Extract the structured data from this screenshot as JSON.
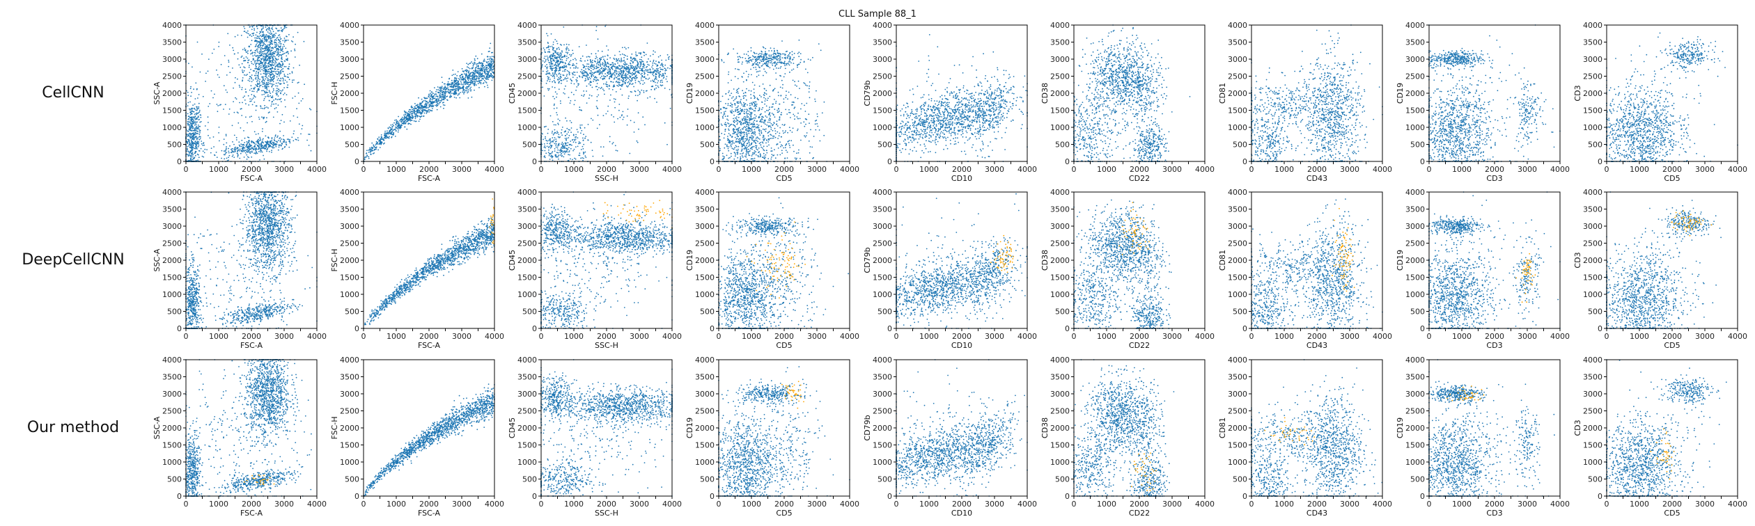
{
  "figure": {
    "title": "CLL Sample 88_1",
    "row_labels": [
      "CellCNN",
      "DeepCellCNN",
      "Our method"
    ],
    "colors": {
      "cells": "#1f77b4",
      "highlighted": "#ffa500"
    }
  },
  "chart_data": {
    "type": "scatter",
    "title": "CLL Sample 88_1",
    "xlim": [
      0,
      4000
    ],
    "ylim": [
      0,
      4000
    ],
    "ticks": [
      0,
      500,
      1000,
      1500,
      2000,
      2500,
      3000,
      3500,
      4000
    ],
    "x_tick_labels": [
      "0",
      "1000",
      "2000",
      "3000",
      "4000"
    ],
    "y_tick_labels": [
      "0",
      "500",
      "1000",
      "1500",
      "2000",
      "2500",
      "3000",
      "3500",
      "4000"
    ],
    "grid": false,
    "rows": [
      "CellCNN",
      "DeepCellCNN",
      "Our method"
    ],
    "panels": [
      {
        "xlabel": "FSC-A",
        "ylabel": "SSC-A",
        "populations": [
          {
            "cx": 2500,
            "cy": 3000,
            "sx": 350,
            "sy": 650,
            "n": 1100
          },
          {
            "cx": 200,
            "cy": 700,
            "sx": 120,
            "sy": 550,
            "n": 450
          },
          {
            "cx": 2200,
            "cy": 450,
            "sx": 550,
            "sy": 120,
            "n": 380,
            "tilt": 0.18
          },
          {
            "cx": 1500,
            "cy": 1500,
            "sx": 1100,
            "sy": 1100,
            "n": 250
          }
        ],
        "highlight": [
          null,
          null,
          {
            "cx": 2300,
            "cy": 500,
            "sx": 200,
            "sy": 80,
            "n": 25
          }
        ]
      },
      {
        "xlabel": "FSC-A",
        "ylabel": "FSC-H",
        "populations": [
          {
            "kind": "curve",
            "n": 1400
          }
        ],
        "highlight": [
          null,
          {
            "cx": 3950,
            "cy": 3000,
            "sx": 40,
            "sy": 400,
            "n": 25
          },
          null
        ]
      },
      {
        "xlabel": "SSC-H",
        "ylabel": "CD45",
        "populations": [
          {
            "cx": 2500,
            "cy": 2650,
            "sx": 900,
            "sy": 250,
            "n": 900
          },
          {
            "cx": 450,
            "cy": 2900,
            "sx": 250,
            "sy": 300,
            "n": 300
          },
          {
            "cx": 600,
            "cy": 450,
            "sx": 450,
            "sy": 300,
            "n": 300
          },
          {
            "cx": 1600,
            "cy": 1800,
            "sx": 1200,
            "sy": 900,
            "n": 250
          }
        ],
        "highlight": [
          null,
          {
            "cx": 3000,
            "cy": 3400,
            "sx": 600,
            "sy": 150,
            "n": 60
          },
          null
        ]
      },
      {
        "xlabel": "CD5",
        "ylabel": "CD19",
        "populations": [
          {
            "cx": 800,
            "cy": 900,
            "sx": 450,
            "sy": 700,
            "n": 900
          },
          {
            "cx": 1500,
            "cy": 3000,
            "sx": 500,
            "sy": 130,
            "n": 300
          },
          {
            "cx": 2000,
            "cy": 1300,
            "sx": 550,
            "sy": 900,
            "n": 300
          }
        ],
        "highlight": [
          null,
          {
            "cx": 1900,
            "cy": 1800,
            "sx": 350,
            "sy": 400,
            "n": 90
          },
          {
            "cx": 2250,
            "cy": 3000,
            "sx": 150,
            "sy": 200,
            "n": 40
          }
        ]
      },
      {
        "xlabel": "CD10",
        "ylabel": "CD79b",
        "populations": [
          {
            "cx": 1300,
            "cy": 1200,
            "sx": 900,
            "sy": 350,
            "n": 900,
            "tilt": 0.25
          },
          {
            "cx": 2800,
            "cy": 1500,
            "sx": 450,
            "sy": 450,
            "n": 350,
            "tilt": 0.6
          },
          {
            "cx": 1500,
            "cy": 1500,
            "sx": 1100,
            "sy": 900,
            "n": 200
          }
        ],
        "highlight": [
          null,
          {
            "cx": 3300,
            "cy": 2100,
            "sx": 150,
            "sy": 250,
            "n": 60
          },
          null
        ]
      },
      {
        "xlabel": "CD22",
        "ylabel": "CD38",
        "populations": [
          {
            "cx": 1400,
            "cy": 2400,
            "sx": 500,
            "sy": 550,
            "n": 800
          },
          {
            "cx": 500,
            "cy": 800,
            "sx": 450,
            "sy": 500,
            "n": 350
          },
          {
            "cx": 2300,
            "cy": 400,
            "sx": 250,
            "sy": 350,
            "n": 300
          },
          {
            "cx": 2200,
            "cy": 2000,
            "sx": 300,
            "sy": 600,
            "n": 200
          }
        ],
        "highlight": [
          null,
          {
            "cx": 1900,
            "cy": 2700,
            "sx": 250,
            "sy": 300,
            "n": 60
          },
          {
            "cx": 2200,
            "cy": 600,
            "sx": 200,
            "sy": 350,
            "n": 40
          }
        ]
      },
      {
        "xlabel": "CD43",
        "ylabel": "CD81",
        "populations": [
          {
            "cx": 2500,
            "cy": 1300,
            "sx": 450,
            "sy": 900,
            "n": 800
          },
          {
            "cx": 500,
            "cy": 500,
            "sx": 350,
            "sy": 450,
            "n": 300
          },
          {
            "cx": 1100,
            "cy": 1700,
            "sx": 850,
            "sy": 400,
            "n": 350
          }
        ],
        "highlight": [
          null,
          {
            "cx": 2850,
            "cy": 2100,
            "sx": 150,
            "sy": 500,
            "n": 80
          },
          {
            "cx": 1200,
            "cy": 1800,
            "sx": 450,
            "sy": 150,
            "n": 40
          }
        ]
      },
      {
        "xlabel": "CD3",
        "ylabel": "CD19",
        "populations": [
          {
            "cx": 800,
            "cy": 900,
            "sx": 550,
            "sy": 650,
            "n": 900
          },
          {
            "cx": 800,
            "cy": 3000,
            "sx": 400,
            "sy": 120,
            "n": 350
          },
          {
            "cx": 3000,
            "cy": 1500,
            "sx": 180,
            "sy": 500,
            "n": 150
          },
          {
            "cx": 1500,
            "cy": 1500,
            "sx": 1100,
            "sy": 1000,
            "n": 150
          }
        ],
        "highlight": [
          null,
          {
            "cx": 3000,
            "cy": 1600,
            "sx": 120,
            "sy": 300,
            "n": 50
          },
          {
            "cx": 1200,
            "cy": 2950,
            "sx": 300,
            "sy": 100,
            "n": 40
          }
        ]
      },
      {
        "xlabel": "CD5",
        "ylabel": "CD3",
        "populations": [
          {
            "cx": 1000,
            "cy": 800,
            "sx": 600,
            "sy": 650,
            "n": 900
          },
          {
            "cx": 2500,
            "cy": 3100,
            "sx": 350,
            "sy": 200,
            "n": 250
          },
          {
            "cx": 1500,
            "cy": 1300,
            "sx": 700,
            "sy": 900,
            "n": 200
          }
        ],
        "highlight": [
          null,
          {
            "cx": 2500,
            "cy": 3100,
            "sx": 250,
            "sy": 150,
            "n": 60
          },
          {
            "cx": 1800,
            "cy": 1200,
            "sx": 150,
            "sy": 300,
            "n": 40
          }
        ]
      }
    ]
  }
}
